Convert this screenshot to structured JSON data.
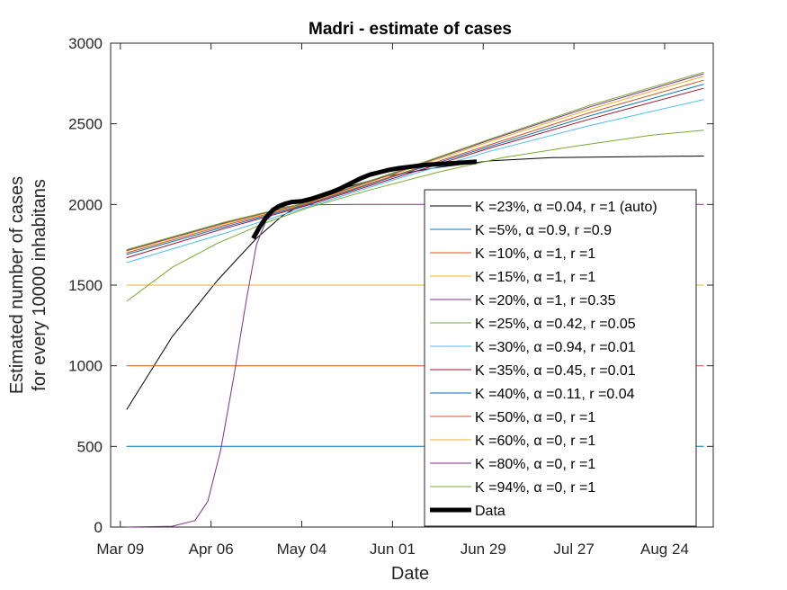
{
  "chart_data": {
    "type": "line",
    "title": "Madri - estimate of cases",
    "xlabel": "Date",
    "ylabel": [
      "Estimated number of cases",
      "for every 10000 inhabitans"
    ],
    "xlim": [
      "2020-03-06",
      "2020-09-08"
    ],
    "ylim": [
      0,
      3000
    ],
    "x_ticks": [
      {
        "date": "2020-03-09",
        "label": "Mar 09"
      },
      {
        "date": "2020-04-06",
        "label": "Apr 06"
      },
      {
        "date": "2020-05-04",
        "label": "May 04"
      },
      {
        "date": "2020-06-01",
        "label": "Jun 01"
      },
      {
        "date": "2020-06-29",
        "label": "Jun 29"
      },
      {
        "date": "2020-07-27",
        "label": "Jul 27"
      },
      {
        "date": "2020-08-24",
        "label": "Aug 24"
      }
    ],
    "y_ticks": [
      0,
      500,
      1000,
      1500,
      2000,
      2500,
      3000
    ],
    "grid": false,
    "legend_position": "right",
    "series": [
      {
        "name": "K =23%, α =0.04, r =1 (auto)",
        "color": "#000000",
        "width": 1,
        "dates": [
          "2020-03-11",
          "2020-03-25",
          "2020-04-08",
          "2020-04-20",
          "2020-04-28",
          "2020-05-05",
          "2020-05-15",
          "2020-05-29",
          "2020-06-15",
          "2020-07-01",
          "2020-07-20",
          "2020-08-10",
          "2020-09-05"
        ],
        "values": [
          730,
          1180,
          1530,
          1790,
          1930,
          2010,
          2090,
          2170,
          2230,
          2270,
          2290,
          2295,
          2300
        ]
      },
      {
        "name": "K =5%, α =0.9, r =0.9",
        "color": "#0072BD",
        "width": 1,
        "dates": [
          "2020-03-11",
          "2020-09-05"
        ],
        "values": [
          500,
          500
        ]
      },
      {
        "name": "K =10%, α =1, r =1",
        "color": "#D95319",
        "width": 1,
        "dates": [
          "2020-03-11",
          "2020-09-05"
        ],
        "values": [
          1000,
          1000
        ]
      },
      {
        "name": "K =15%, α =1, r =1",
        "color": "#EDB120",
        "width": 1,
        "dates": [
          "2020-03-11",
          "2020-09-05"
        ],
        "values": [
          1500,
          1500
        ]
      },
      {
        "name": "K =20%, α =1, r =0.35",
        "color": "#7E2F8E",
        "width": 1,
        "dates": [
          "2020-03-11",
          "2020-03-25",
          "2020-04-01",
          "2020-04-05",
          "2020-04-09",
          "2020-04-13",
          "2020-04-17",
          "2020-04-20",
          "2020-04-23",
          "2020-04-27",
          "2020-05-05",
          "2020-05-20",
          "2020-09-05"
        ],
        "values": [
          0,
          5,
          40,
          160,
          480,
          930,
          1420,
          1750,
          1900,
          1980,
          1998,
          2000,
          2000
        ]
      },
      {
        "name": "K =25%, α =0.42, r =0.05",
        "color": "#77AC30",
        "width": 1,
        "dates": [
          "2020-03-11",
          "2020-03-25",
          "2020-04-08",
          "2020-04-22",
          "2020-05-06",
          "2020-05-25",
          "2020-06-15",
          "2020-07-05",
          "2020-07-27",
          "2020-08-20",
          "2020-09-05"
        ],
        "values": [
          1400,
          1610,
          1760,
          1880,
          1980,
          2090,
          2200,
          2290,
          2360,
          2430,
          2460
        ]
      },
      {
        "name": "K =30%, α =0.94, r =0.01",
        "color": "#4DBEEE",
        "width": 1,
        "dates": [
          "2020-03-11",
          "2020-04-10",
          "2020-05-05",
          "2020-06-01",
          "2020-07-01",
          "2020-08-01",
          "2020-09-05"
        ],
        "values": [
          1640,
          1820,
          1980,
          2150,
          2330,
          2490,
          2650
        ]
      },
      {
        "name": "K =35%, α =0.45, r =0.01",
        "color": "#A2142F",
        "width": 1,
        "dates": [
          "2020-03-11",
          "2020-04-10",
          "2020-05-05",
          "2020-06-01",
          "2020-07-01",
          "2020-08-01",
          "2020-09-05"
        ],
        "values": [
          1670,
          1850,
          1990,
          2160,
          2350,
          2530,
          2720
        ]
      },
      {
        "name": "K =40%, α =0.11, r =0.04",
        "color": "#0072BD",
        "width": 1,
        "dates": [
          "2020-03-11",
          "2020-04-10",
          "2020-05-05",
          "2020-06-01",
          "2020-07-01",
          "2020-08-01",
          "2020-09-05"
        ],
        "values": [
          1690,
          1860,
          1995,
          2170,
          2360,
          2550,
          2745
        ]
      },
      {
        "name": "K =50%, α =0, r =1",
        "color": "#D95319",
        "width": 1,
        "dates": [
          "2020-03-11",
          "2020-04-10",
          "2020-05-05",
          "2020-06-01",
          "2020-07-01",
          "2020-08-01",
          "2020-09-05"
        ],
        "values": [
          1700,
          1870,
          2000,
          2175,
          2370,
          2570,
          2770
        ]
      },
      {
        "name": "K =60%, α =0, r =1",
        "color": "#EDB120",
        "width": 1,
        "dates": [
          "2020-03-11",
          "2020-04-10",
          "2020-05-05",
          "2020-06-01",
          "2020-07-01",
          "2020-08-01",
          "2020-09-05"
        ],
        "values": [
          1710,
          1880,
          2005,
          2185,
          2390,
          2590,
          2795
        ]
      },
      {
        "name": "K =80%, α =0, r =1",
        "color": "#7E2F8E",
        "width": 1,
        "dates": [
          "2020-03-11",
          "2020-04-10",
          "2020-05-05",
          "2020-06-01",
          "2020-07-01",
          "2020-08-01",
          "2020-09-05"
        ],
        "values": [
          1715,
          1885,
          2008,
          2190,
          2400,
          2605,
          2810
        ]
      },
      {
        "name": "K =94%, α =0, r =1",
        "color": "#77AC30",
        "width": 1,
        "dates": [
          "2020-03-11",
          "2020-04-10",
          "2020-05-05",
          "2020-06-01",
          "2020-07-01",
          "2020-08-01",
          "2020-09-05"
        ],
        "values": [
          1720,
          1890,
          2010,
          2195,
          2405,
          2615,
          2820
        ]
      },
      {
        "name": "Data",
        "color": "#000000",
        "width": 5,
        "dates": [
          "2020-04-19",
          "2020-04-21",
          "2020-04-23",
          "2020-04-25",
          "2020-04-27",
          "2020-04-29",
          "2020-05-01",
          "2020-05-04",
          "2020-05-07",
          "2020-05-10",
          "2020-05-13",
          "2020-05-16",
          "2020-05-19",
          "2020-05-22",
          "2020-05-25",
          "2020-05-28",
          "2020-05-31",
          "2020-06-03",
          "2020-06-07",
          "2020-06-11",
          "2020-06-15",
          "2020-06-19",
          "2020-06-23",
          "2020-06-27"
        ],
        "values": [
          1790,
          1860,
          1920,
          1965,
          1990,
          2005,
          2015,
          2020,
          2035,
          2055,
          2075,
          2100,
          2130,
          2160,
          2185,
          2200,
          2215,
          2225,
          2235,
          2245,
          2250,
          2255,
          2260,
          2265
        ]
      }
    ]
  }
}
